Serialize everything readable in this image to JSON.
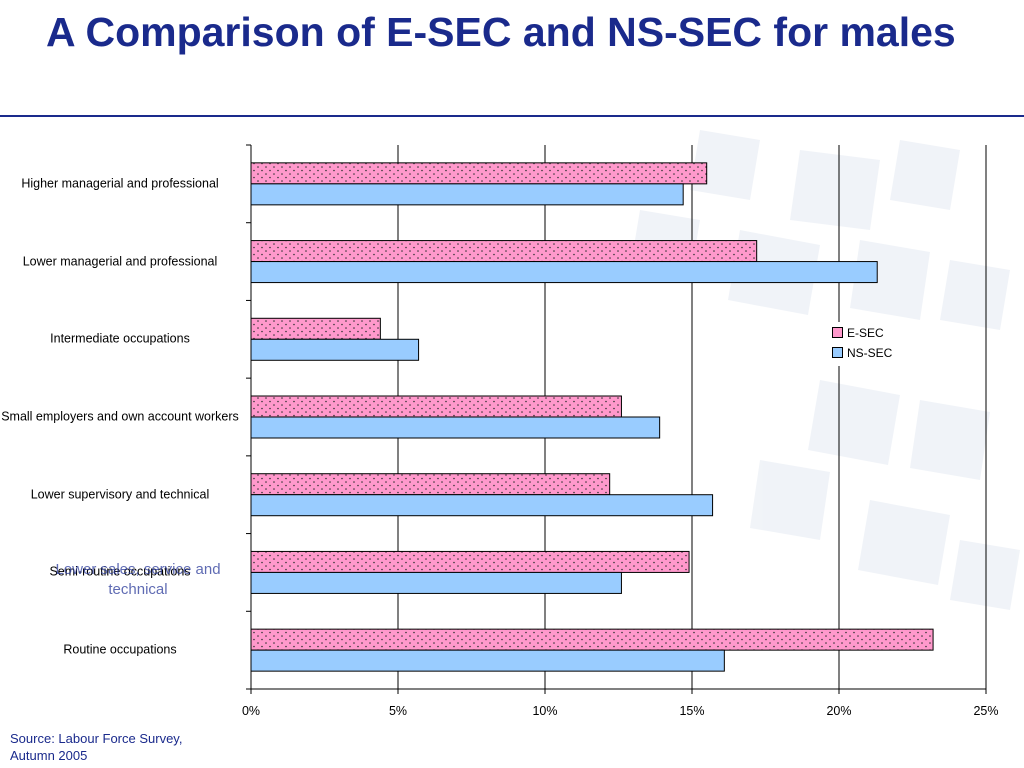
{
  "slide": {
    "title": "A Comparison of E-SEC and NS-SEC for males",
    "source": "Source: Labour Force Survey, Autumn 2005",
    "overlay_label": "Lower sales, service and technical"
  },
  "colors": {
    "title": "#1a2a8c",
    "esec_fill": "#ff99cc",
    "nssec_fill": "#99ccff",
    "grid": "#000000"
  },
  "chart_data": {
    "type": "bar",
    "orientation": "horizontal",
    "categories": [
      "Higher managerial and professional",
      "Lower managerial and professional",
      "Intermediate occupations",
      "Small employers and own account workers",
      "Lower supervisory and technical",
      "Semi-routine occupations",
      "Routine occupations"
    ],
    "series": [
      {
        "name": "E-SEC",
        "values": [
          15.5,
          17.2,
          4.4,
          12.6,
          12.2,
          14.9,
          23.2
        ],
        "color": "#ff99cc",
        "pattern": "dotted"
      },
      {
        "name": "NS-SEC",
        "values": [
          14.7,
          21.3,
          5.7,
          13.9,
          15.7,
          12.6,
          16.1
        ],
        "color": "#99ccff",
        "pattern": "solid"
      }
    ],
    "xlim": [
      0,
      25
    ],
    "xticks": [
      "0%",
      "5%",
      "10%",
      "15%",
      "20%",
      "25%"
    ],
    "xlabel": "",
    "ylabel": "",
    "grid": true,
    "legend_position": "right"
  }
}
